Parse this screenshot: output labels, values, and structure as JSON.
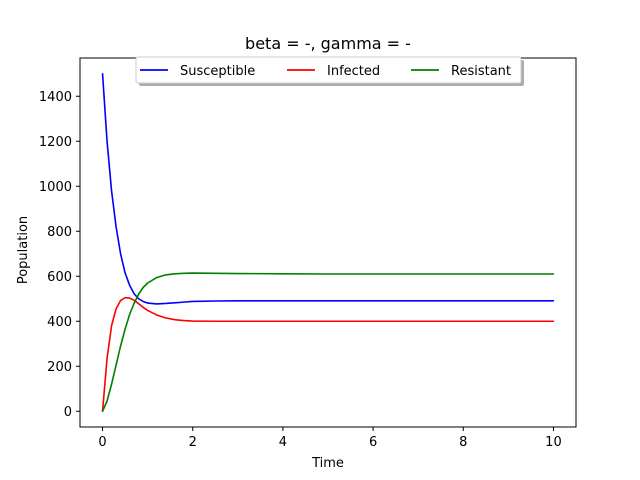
{
  "chart_data": {
    "type": "line",
    "title": "beta = -, gamma = -",
    "xlabel": "Time",
    "ylabel": "Population",
    "xlim": [
      -0.5,
      10.5
    ],
    "ylim": [
      -70,
      1570
    ],
    "xticks": [
      0,
      2,
      4,
      6,
      8,
      10
    ],
    "yticks": [
      0,
      200,
      400,
      600,
      800,
      1000,
      1200,
      1400
    ],
    "grid": false,
    "legend_position": "top-center",
    "series": [
      {
        "name": "Susceptible",
        "color": "#0000ff",
        "x": [
          0,
          0.1,
          0.2,
          0.3,
          0.4,
          0.5,
          0.6,
          0.7,
          0.8,
          0.9,
          1.0,
          1.2,
          1.4,
          1.6,
          1.8,
          2.0,
          2.5,
          3.0,
          4.0,
          5.0,
          6.0,
          7.0,
          8.0,
          9.0,
          10.0
        ],
        "y": [
          1500,
          1200,
          980,
          820,
          700,
          615,
          560,
          522,
          500,
          488,
          481,
          477,
          479,
          482,
          485,
          488,
          490,
          491,
          491,
          491,
          491,
          491,
          491,
          491,
          491
        ]
      },
      {
        "name": "Infected",
        "color": "#ff0000",
        "x": [
          0,
          0.1,
          0.2,
          0.3,
          0.4,
          0.5,
          0.6,
          0.7,
          0.8,
          0.9,
          1.0,
          1.2,
          1.4,
          1.6,
          1.8,
          2.0,
          2.5,
          3.0,
          4.0,
          5.0,
          6.0,
          7.0,
          8.0,
          9.0,
          10.0
        ],
        "y": [
          0,
          235,
          380,
          455,
          492,
          505,
          503,
          493,
          478,
          462,
          448,
          428,
          415,
          407,
          403,
          401,
          400,
          400,
          400,
          400,
          400,
          400,
          400,
          400,
          400
        ]
      },
      {
        "name": "Resistant",
        "color": "#008000",
        "x": [
          0,
          0.1,
          0.2,
          0.3,
          0.4,
          0.5,
          0.6,
          0.7,
          0.8,
          0.9,
          1.0,
          1.2,
          1.4,
          1.6,
          1.8,
          2.0,
          2.5,
          3.0,
          4.0,
          5.0,
          6.0,
          7.0,
          8.0,
          9.0,
          10.0
        ],
        "y": [
          0,
          45,
          120,
          205,
          290,
          365,
          430,
          480,
          520,
          550,
          570,
          594,
          606,
          611,
          613,
          614,
          613,
          612,
          611,
          610,
          610,
          610,
          610,
          610,
          610
        ]
      }
    ]
  }
}
